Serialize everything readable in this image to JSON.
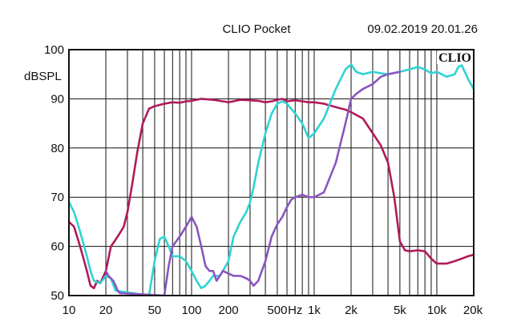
{
  "header": {
    "title": "CLIO Pocket",
    "timestamp": "09.02.2019 20.01.26",
    "logo": "CLIO"
  },
  "colors": {
    "background": "#ffffff",
    "grid": "#111111",
    "series": [
      "#b01a5a",
      "#2fd3d3",
      "#8a55c0"
    ]
  },
  "chart_data": {
    "type": "line",
    "title": "",
    "xlabel": "",
    "ylabel": "dBSPL",
    "xscale": "log",
    "xlim": [
      10,
      20000
    ],
    "ylim": [
      50,
      100
    ],
    "grid": true,
    "legend": "none",
    "y_ticks": [
      {
        "value": 100,
        "label": "100"
      },
      {
        "value": 90,
        "label": "90"
      },
      {
        "value": 80,
        "label": "80"
      },
      {
        "value": 70,
        "label": "70"
      },
      {
        "value": 60,
        "label": "60"
      },
      {
        "value": 50,
        "label": "50"
      }
    ],
    "x_ticks": [
      {
        "value": 10,
        "label": "10"
      },
      {
        "value": 20,
        "label": "20"
      },
      {
        "value": 50,
        "label": "50"
      },
      {
        "value": 100,
        "label": "100"
      },
      {
        "value": 200,
        "label": "200"
      },
      {
        "value": 500,
        "label": "500"
      },
      {
        "value": 700,
        "label": "Hz"
      },
      {
        "value": 1000,
        "label": "1k"
      },
      {
        "value": 2000,
        "label": "2k"
      },
      {
        "value": 5000,
        "label": "5k"
      },
      {
        "value": 10000,
        "label": "10k"
      },
      {
        "value": 20000,
        "label": "20k"
      }
    ],
    "series": [
      {
        "color": "#b01a5a",
        "points": [
          [
            10,
            65
          ],
          [
            11,
            64
          ],
          [
            12,
            61
          ],
          [
            13,
            58
          ],
          [
            14,
            55
          ],
          [
            15,
            52
          ],
          [
            16,
            51.5
          ],
          [
            17,
            53
          ],
          [
            18,
            52.5
          ],
          [
            20,
            55
          ],
          [
            22,
            60
          ],
          [
            25,
            62
          ],
          [
            28,
            64
          ],
          [
            30,
            67
          ],
          [
            33,
            73
          ],
          [
            36,
            79
          ],
          [
            40,
            85
          ],
          [
            45,
            88
          ],
          [
            50,
            88.5
          ],
          [
            60,
            89
          ],
          [
            70,
            89.3
          ],
          [
            80,
            89.2
          ],
          [
            90,
            89.5
          ],
          [
            100,
            89.6
          ],
          [
            120,
            90
          ],
          [
            150,
            89.8
          ],
          [
            180,
            89.5
          ],
          [
            200,
            89.3
          ],
          [
            250,
            89.8
          ],
          [
            300,
            89.7
          ],
          [
            350,
            89.6
          ],
          [
            400,
            89.3
          ],
          [
            450,
            89.5
          ],
          [
            500,
            89.8
          ],
          [
            550,
            90
          ],
          [
            600,
            89.5
          ],
          [
            700,
            89.7
          ],
          [
            800,
            89.5
          ],
          [
            900,
            89.3
          ],
          [
            1000,
            89.3
          ],
          [
            1200,
            89
          ],
          [
            1500,
            88.3
          ],
          [
            1800,
            87.8
          ],
          [
            2000,
            87.3
          ],
          [
            2500,
            86
          ],
          [
            3000,
            83
          ],
          [
            3500,
            80.5
          ],
          [
            4000,
            77
          ],
          [
            4500,
            70
          ],
          [
            5000,
            61
          ],
          [
            5500,
            59.2
          ],
          [
            6000,
            59
          ],
          [
            7000,
            59.2
          ],
          [
            8000,
            59
          ],
          [
            9000,
            57.5
          ],
          [
            10000,
            56.5
          ],
          [
            12000,
            56.5
          ],
          [
            14000,
            57
          ],
          [
            16000,
            57.5
          ],
          [
            18000,
            58
          ],
          [
            20000,
            58.3
          ]
        ]
      },
      {
        "color": "#2fd3d3",
        "points": [
          [
            10,
            69
          ],
          [
            11,
            67
          ],
          [
            12,
            64
          ],
          [
            13,
            61
          ],
          [
            14,
            58
          ],
          [
            15,
            55
          ],
          [
            16,
            53
          ],
          [
            18,
            52.5
          ],
          [
            20,
            54
          ],
          [
            22,
            53.5
          ],
          [
            24,
            51
          ],
          [
            45,
            50
          ],
          [
            50,
            57
          ],
          [
            55,
            61.5
          ],
          [
            60,
            62
          ],
          [
            65,
            60
          ],
          [
            70,
            58
          ],
          [
            80,
            58
          ],
          [
            90,
            57
          ],
          [
            100,
            55
          ],
          [
            110,
            53
          ],
          [
            120,
            51.5
          ],
          [
            130,
            52
          ],
          [
            140,
            53
          ],
          [
            150,
            54
          ],
          [
            170,
            54
          ],
          [
            180,
            55
          ],
          [
            200,
            57
          ],
          [
            220,
            62
          ],
          [
            250,
            65
          ],
          [
            280,
            67
          ],
          [
            300,
            69
          ],
          [
            320,
            72
          ],
          [
            350,
            77
          ],
          [
            400,
            83
          ],
          [
            450,
            87
          ],
          [
            500,
            89
          ],
          [
            550,
            89.5
          ],
          [
            600,
            89
          ],
          [
            700,
            87
          ],
          [
            800,
            85
          ],
          [
            900,
            82
          ],
          [
            1000,
            83
          ],
          [
            1200,
            86
          ],
          [
            1500,
            92
          ],
          [
            1800,
            96
          ],
          [
            2000,
            97
          ],
          [
            2200,
            95.5
          ],
          [
            2500,
            95
          ],
          [
            3000,
            95.5
          ],
          [
            3500,
            95.2
          ],
          [
            4000,
            95
          ],
          [
            5000,
            95.5
          ],
          [
            6000,
            96
          ],
          [
            7000,
            96.5
          ],
          [
            8000,
            96
          ],
          [
            9000,
            95.2
          ],
          [
            10000,
            95.5
          ],
          [
            12000,
            94.5
          ],
          [
            14000,
            95
          ],
          [
            15000,
            96.5
          ],
          [
            16000,
            96.8
          ],
          [
            18000,
            94
          ],
          [
            20000,
            92
          ]
        ]
      },
      {
        "color": "#8a55c0",
        "points": [
          [
            20,
            55
          ],
          [
            21,
            54
          ],
          [
            22,
            53.5
          ],
          [
            23,
            53
          ],
          [
            24,
            52
          ],
          [
            25,
            51
          ],
          [
            26,
            50.5
          ],
          [
            60,
            50
          ],
          [
            65,
            56
          ],
          [
            70,
            60
          ],
          [
            80,
            62
          ],
          [
            90,
            64
          ],
          [
            100,
            66
          ],
          [
            110,
            64
          ],
          [
            120,
            60
          ],
          [
            130,
            56
          ],
          [
            140,
            55
          ],
          [
            150,
            55
          ],
          [
            160,
            53
          ],
          [
            170,
            54
          ],
          [
            180,
            55
          ],
          [
            200,
            54.5
          ],
          [
            220,
            54
          ],
          [
            250,
            54
          ],
          [
            280,
            53.5
          ],
          [
            300,
            53
          ],
          [
            320,
            52
          ],
          [
            350,
            53
          ],
          [
            400,
            57
          ],
          [
            450,
            62
          ],
          [
            500,
            64.5
          ],
          [
            550,
            66
          ],
          [
            600,
            68
          ],
          [
            650,
            69.5
          ],
          [
            700,
            70
          ],
          [
            800,
            70.5
          ],
          [
            900,
            70
          ],
          [
            1000,
            70
          ],
          [
            1200,
            71
          ],
          [
            1500,
            77
          ],
          [
            1800,
            85
          ],
          [
            2000,
            90
          ],
          [
            2200,
            91
          ],
          [
            2500,
            92
          ],
          [
            3000,
            93
          ],
          [
            3500,
            94.5
          ],
          [
            4000,
            95
          ],
          [
            5000,
            95.5
          ]
        ]
      }
    ]
  }
}
